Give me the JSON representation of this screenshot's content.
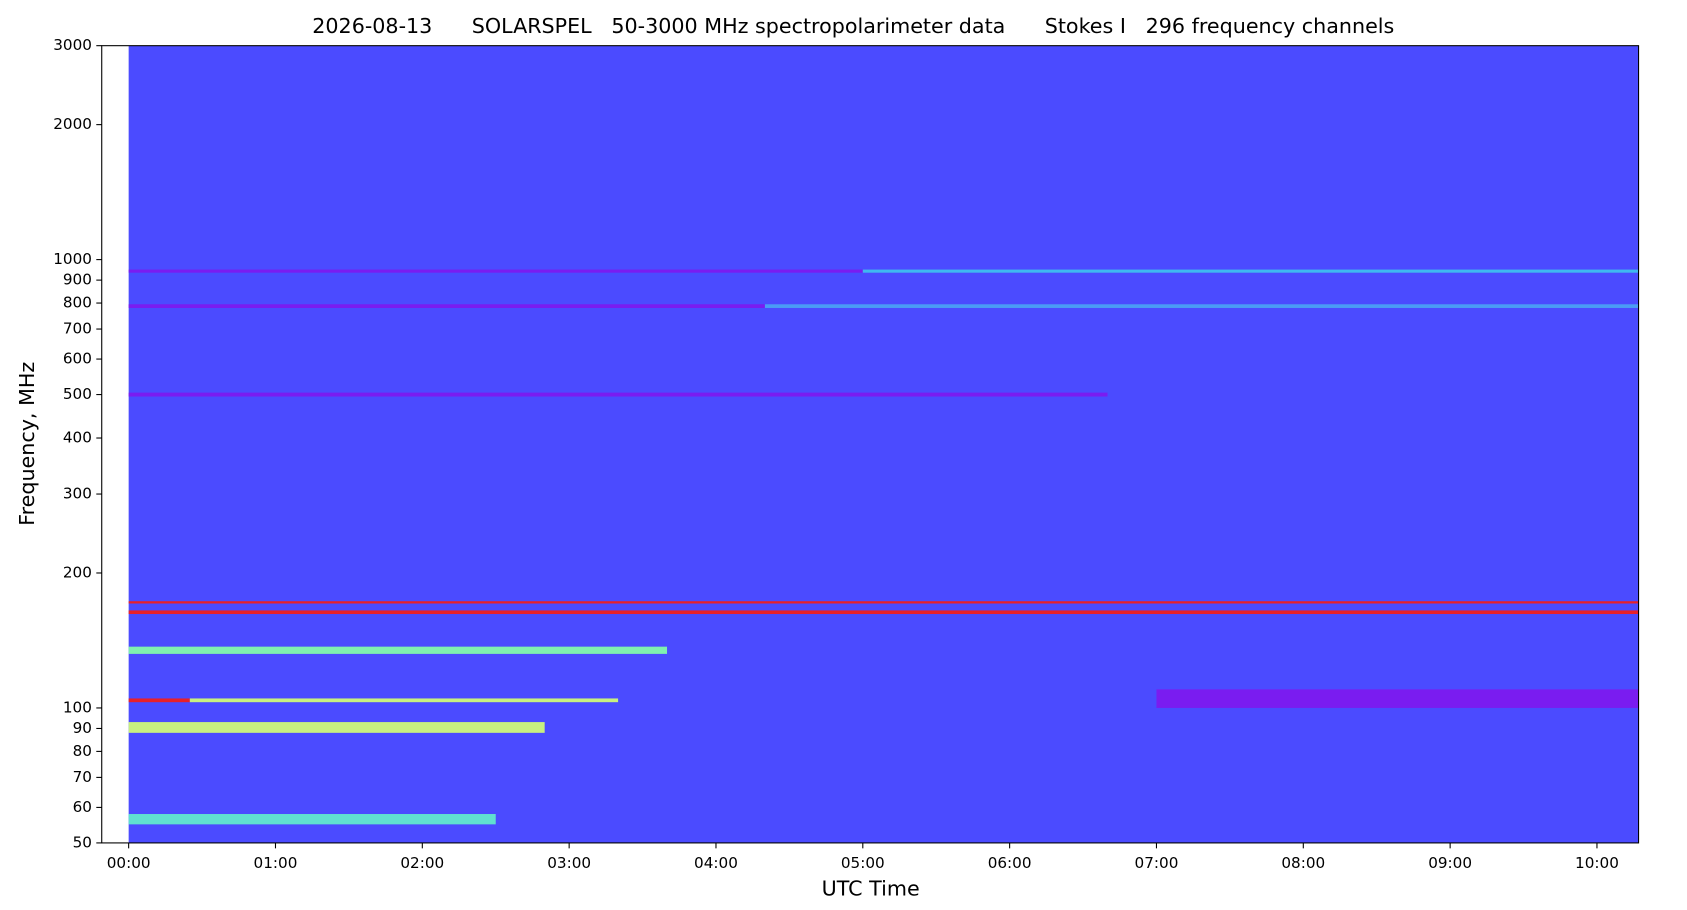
{
  "chart_data": {
    "type": "spectrogram",
    "title": "2026-08-13      SOLARSPEL   50-3000 MHz spectropolarimeter data      Stokes I   296 frequency channels",
    "x_label": "UTC Time",
    "y_label": "Frequency, MHz",
    "background_color": "#4b4bff",
    "data_xlim": [
      0,
      617
    ],
    "xlim": [
      -11,
      617
    ],
    "xticks": [
      {
        "value": 0,
        "label": "00:00"
      },
      {
        "value": 60,
        "label": "01:00"
      },
      {
        "value": 120,
        "label": "02:00"
      },
      {
        "value": 180,
        "label": "03:00"
      },
      {
        "value": 240,
        "label": "04:00"
      },
      {
        "value": 300,
        "label": "05:00"
      },
      {
        "value": 360,
        "label": "06:00"
      },
      {
        "value": 420,
        "label": "07:00"
      },
      {
        "value": 480,
        "label": "08:00"
      },
      {
        "value": 540,
        "label": "09:00"
      },
      {
        "value": 600,
        "label": "10:00"
      }
    ],
    "ylim": [
      50,
      3000
    ],
    "ylog": true,
    "yticks": [
      50,
      60,
      70,
      80,
      90,
      100,
      200,
      300,
      400,
      500,
      600,
      700,
      800,
      900,
      1000,
      2000,
      3000
    ],
    "bands": [
      {
        "freq": [
          935,
          950
        ],
        "time": [
          0,
          300
        ],
        "color": "#7a1cf0"
      },
      {
        "freq": [
          935,
          950
        ],
        "time": [
          300,
          617
        ],
        "color": "#3fb8f0"
      },
      {
        "freq": [
          780,
          795
        ],
        "time": [
          0,
          260
        ],
        "color": "#7a1cf0"
      },
      {
        "freq": [
          780,
          795
        ],
        "time": [
          260,
          617
        ],
        "color": "#4a9cf5"
      },
      {
        "freq": [
          495,
          505
        ],
        "time": [
          0,
          400
        ],
        "color": "#7a1cf0"
      },
      {
        "freq": [
          100,
          110
        ],
        "time": [
          420,
          617
        ],
        "color": "#7a1cf0"
      },
      {
        "freq": [
          162,
          165
        ],
        "time": [
          0,
          617
        ],
        "color": "#e8202a"
      },
      {
        "freq": [
          171,
          173
        ],
        "time": [
          0,
          617
        ],
        "color": "#e8202a"
      },
      {
        "freq": [
          132,
          137
        ],
        "time": [
          0,
          220
        ],
        "color": "#7ff0b0"
      },
      {
        "freq": [
          103,
          105
        ],
        "time": [
          0,
          25
        ],
        "color": "#e8202a"
      },
      {
        "freq": [
          103,
          105
        ],
        "time": [
          25,
          200
        ],
        "color": "#c8f080"
      },
      {
        "freq": [
          88,
          93
        ],
        "time": [
          0,
          170
        ],
        "color": "#c8f080"
      },
      {
        "freq": [
          55,
          58
        ],
        "time": [
          0,
          150
        ],
        "color": "#60e0d0"
      }
    ]
  }
}
